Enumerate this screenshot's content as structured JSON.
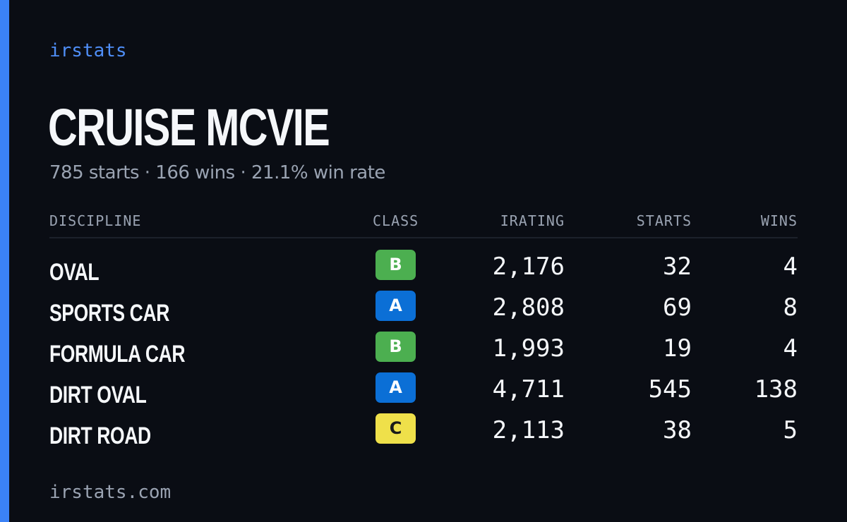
{
  "brand": "irstats",
  "driver": {
    "name": "CRUISE MCVIE",
    "summary": "785 starts · 166 wins · 21.1% win rate"
  },
  "table": {
    "headers": {
      "discipline": "DISCIPLINE",
      "class": "CLASS",
      "irating": "IRATING",
      "starts": "STARTS",
      "wins": "WINS"
    },
    "rows": [
      {
        "discipline": "OVAL",
        "class": "B",
        "irating": "2,176",
        "starts": "32",
        "wins": "4"
      },
      {
        "discipline": "SPORTS CAR",
        "class": "A",
        "irating": "2,808",
        "starts": "69",
        "wins": "8"
      },
      {
        "discipline": "FORMULA CAR",
        "class": "B",
        "irating": "1,993",
        "starts": "19",
        "wins": "4"
      },
      {
        "discipline": "DIRT OVAL",
        "class": "A",
        "irating": "4,711",
        "starts": "545",
        "wins": "138"
      },
      {
        "discipline": "DIRT ROAD",
        "class": "C",
        "irating": "2,113",
        "starts": "38",
        "wins": "5"
      }
    ]
  },
  "class_colors": {
    "A": {
      "bg": "#0b6fd6",
      "fg": "#ffffff"
    },
    "B": {
      "bg": "#4caf50",
      "fg": "#ffffff"
    },
    "C": {
      "bg": "#efe04a",
      "fg": "#1a1a1a"
    }
  },
  "footer": {
    "url": "irstats.com"
  },
  "colors": {
    "background": "#0a0d14",
    "accent": "#3b82f6",
    "brand": "#4f8ef7",
    "muted": "#9aa3b2",
    "text": "#f5f7fa"
  }
}
